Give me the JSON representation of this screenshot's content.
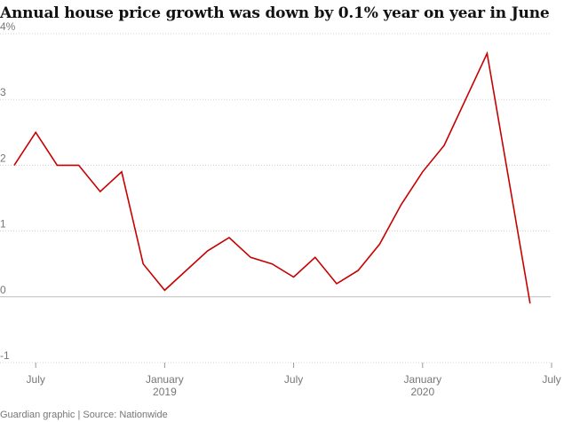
{
  "chart_data": {
    "type": "line",
    "title": "Annual house price growth was down by 0.1% year on year in June",
    "xlabel": "",
    "ylabel": "",
    "ylim": [
      -1,
      4
    ],
    "y_ticks": [
      "4%",
      "3",
      "2",
      "1",
      "0",
      "-1"
    ],
    "x_ticks": [
      {
        "label": "July",
        "sublabel": ""
      },
      {
        "label": "January",
        "sublabel": "2019"
      },
      {
        "label": "July",
        "sublabel": ""
      },
      {
        "label": "January",
        "sublabel": "2020"
      },
      {
        "label": "July",
        "sublabel": ""
      }
    ],
    "grid": "horizontal dotted",
    "line_color": "#c70000",
    "series": [
      {
        "x": [
          "2018-06",
          "2018-07",
          "2018-08",
          "2018-09",
          "2018-10",
          "2018-11",
          "2018-12",
          "2019-01",
          "2019-02",
          "2019-03",
          "2019-04",
          "2019-05",
          "2019-06",
          "2019-07",
          "2019-08",
          "2019-09",
          "2019-10",
          "2019-11",
          "2019-12",
          "2020-01",
          "2020-02",
          "2020-03",
          "2020-04",
          "2020-05",
          "2020-06"
        ],
        "values": [
          2.0,
          2.5,
          2.0,
          2.0,
          1.6,
          1.9,
          0.5,
          0.1,
          0.4,
          0.7,
          0.9,
          0.6,
          0.5,
          0.3,
          0.6,
          0.2,
          0.4,
          0.8,
          1.4,
          1.9,
          2.3,
          3.0,
          3.7,
          1.8,
          -0.1
        ]
      }
    ]
  },
  "footer": "Guardian graphic | Source: Nationwide"
}
